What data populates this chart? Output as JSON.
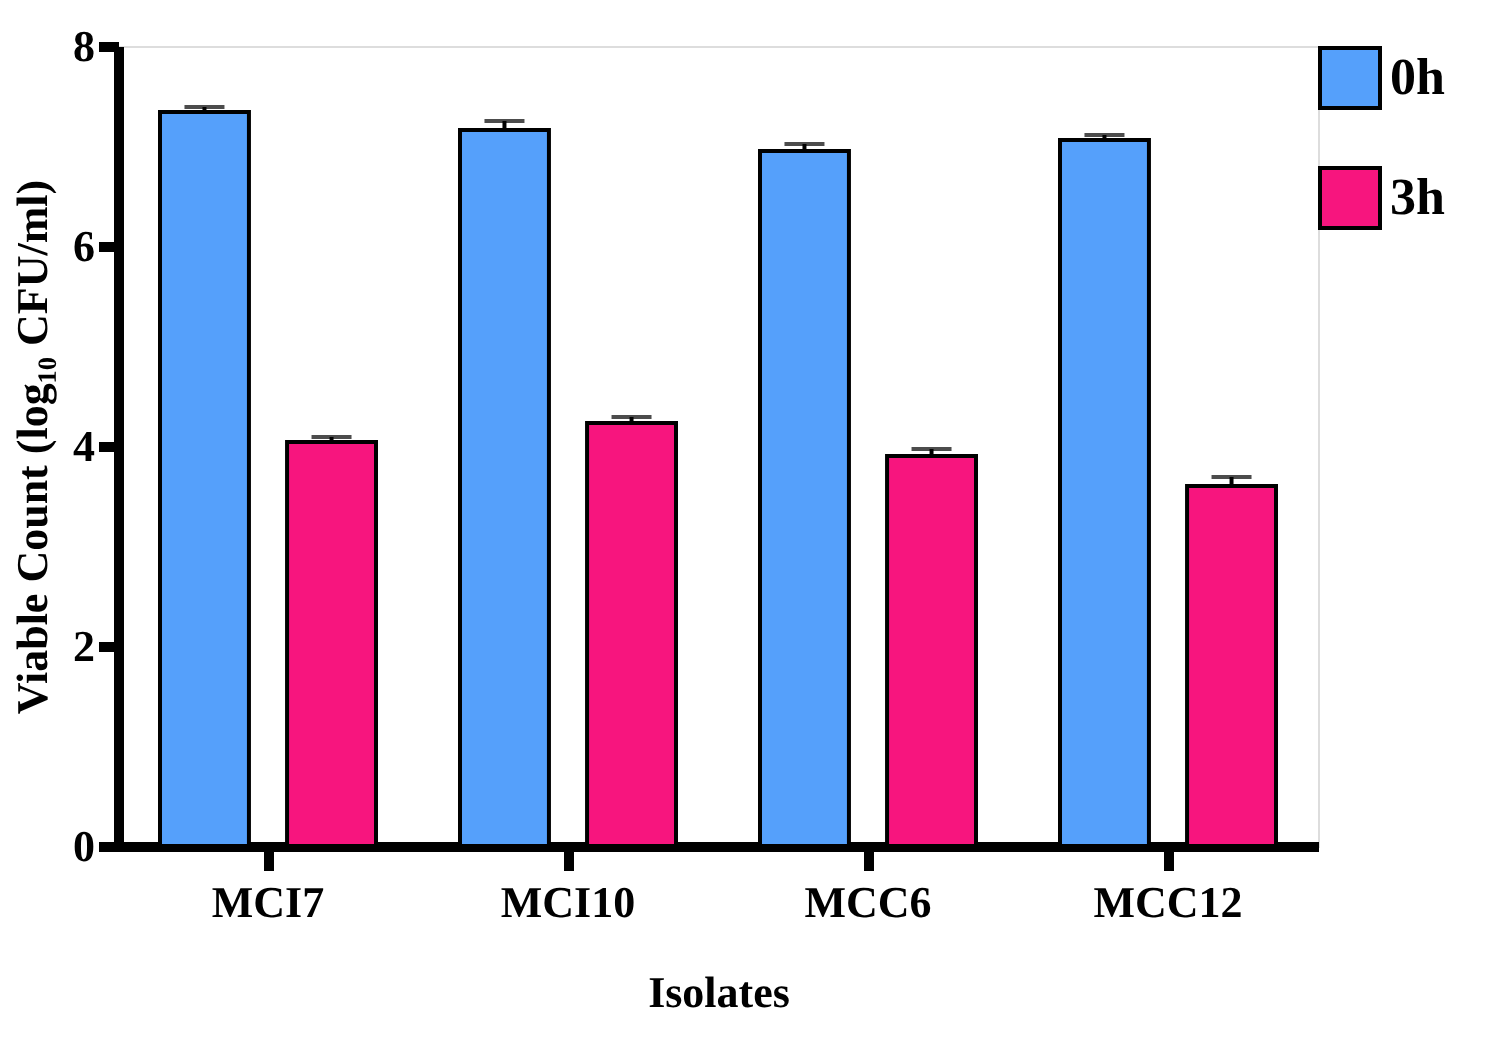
{
  "chart_data": {
    "type": "bar",
    "xlabel": "Isolates",
    "ylabel": "Viable Count (log₁₀ CFU/ml)",
    "categories": [
      "MCI7",
      "MCI10",
      "MCC6",
      "MCC12"
    ],
    "series": [
      {
        "name": "0h",
        "color": "#55a0fb",
        "values": [
          7.34,
          7.16,
          6.95,
          7.06
        ],
        "errors": [
          0.05,
          0.09,
          0.07,
          0.05
        ]
      },
      {
        "name": "3h",
        "color": "#f7157e",
        "values": [
          4.04,
          4.23,
          3.9,
          3.6
        ],
        "errors": [
          0.05,
          0.06,
          0.07,
          0.09
        ]
      }
    ],
    "ylim": [
      0,
      8
    ],
    "yticks": [
      0,
      2,
      4,
      6,
      8
    ],
    "grid": false,
    "legend": "top right"
  }
}
